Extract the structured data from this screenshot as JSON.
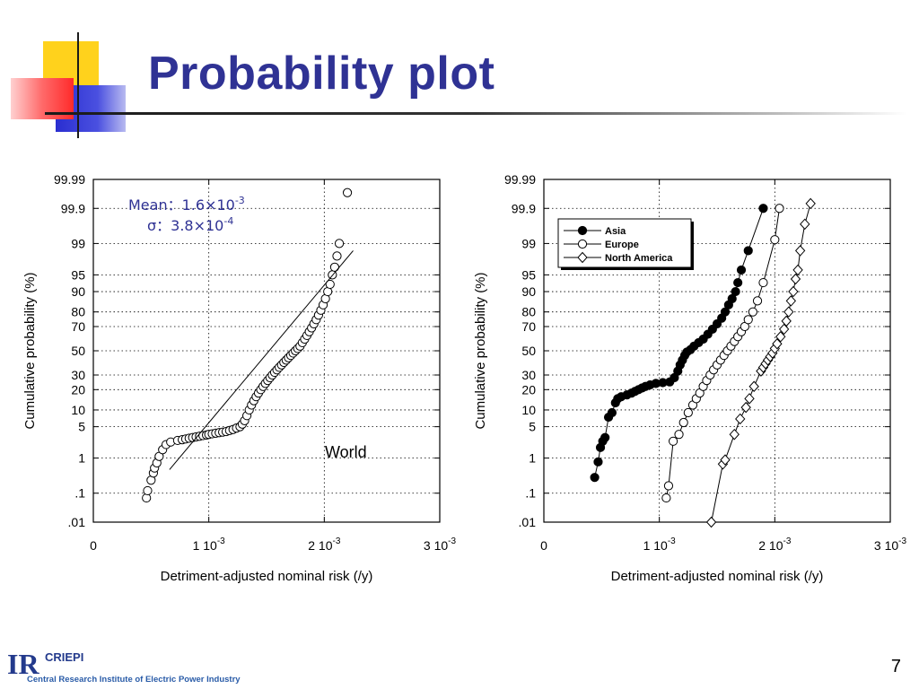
{
  "slide": {
    "title": "Probability plot",
    "page_number": "7",
    "logo": {
      "mark": "IR",
      "brand": "CRIEPI",
      "name": "Central Research Institute of Electric Power Industry"
    },
    "colors": {
      "title": "#2f3294",
      "yellow": "#ffd21c",
      "red": "#ff3a3a",
      "blue": "#2a2ed0",
      "annotation": "#2f3294"
    }
  },
  "chart_data": [
    {
      "type": "scatter",
      "title": "",
      "xlabel": "Detriment-adjusted nominal risk (/y)",
      "ylabel": "Cumulative probability (%)",
      "y_scale": "normal-probability",
      "xlim": [
        0,
        0.003
      ],
      "ylim": [
        0.01,
        99.99
      ],
      "x_ticks": [
        {
          "value": 0,
          "label": "0"
        },
        {
          "value": 0.001,
          "label": "1 10",
          "exp": "-3"
        },
        {
          "value": 0.002,
          "label": "2 10",
          "exp": "-3"
        },
        {
          "value": 0.003,
          "label": "3 10",
          "exp": "-3"
        }
      ],
      "y_ticks": [
        {
          "value": 0.01,
          "label": ".01"
        },
        {
          "value": 0.1,
          "label": ".1"
        },
        {
          "value": 1,
          "label": "1"
        },
        {
          "value": 5,
          "label": "5"
        },
        {
          "value": 10,
          "label": "10"
        },
        {
          "value": 20,
          "label": "20"
        },
        {
          "value": 30,
          "label": "30"
        },
        {
          "value": 50,
          "label": "50"
        },
        {
          "value": 70,
          "label": "70"
        },
        {
          "value": 80,
          "label": "80"
        },
        {
          "value": 90,
          "label": "90"
        },
        {
          "value": 95,
          "label": "95"
        },
        {
          "value": 99,
          "label": "99"
        },
        {
          "value": 99.9,
          "label": "99.9"
        },
        {
          "value": 99.99,
          "label": "99.99"
        }
      ],
      "grid": true,
      "annotations": [
        {
          "text": "World"
        },
        {
          "text": "Mean：1.6×10",
          "exp": "-3"
        },
        {
          "text": "σ：3.8×10",
          "exp": "-4"
        }
      ],
      "series": [
        {
          "marker": "open-circle",
          "color": "#000000",
          "connected": false,
          "x": [
            0.00046,
            0.00047,
            0.0005,
            0.00052,
            0.00053,
            0.00055,
            0.00057,
            0.0006,
            0.00063,
            0.00067,
            0.00073,
            0.00077,
            0.0008,
            0.00083,
            0.00086,
            0.00089,
            0.00092,
            0.00095,
            0.00098,
            0.001,
            0.00103,
            0.00106,
            0.00109,
            0.00112,
            0.00115,
            0.00118,
            0.00121,
            0.00124,
            0.00127,
            0.00129,
            0.00131,
            0.00133,
            0.00135,
            0.00137,
            0.00139,
            0.00141,
            0.00143,
            0.00145,
            0.00147,
            0.00149,
            0.00151,
            0.00153,
            0.00155,
            0.00157,
            0.00159,
            0.00161,
            0.00163,
            0.00165,
            0.00167,
            0.00169,
            0.00171,
            0.00173,
            0.00175,
            0.00177,
            0.00179,
            0.00181,
            0.00183,
            0.00185,
            0.00187,
            0.00189,
            0.00191,
            0.00193,
            0.00195,
            0.00197,
            0.00199,
            0.00201,
            0.00203,
            0.00205,
            0.00207,
            0.00209,
            0.00211,
            0.00213,
            0.0022
          ],
          "y": [
            0.07,
            0.12,
            0.25,
            0.4,
            0.55,
            0.75,
            1.1,
            1.6,
            2.1,
            2.4,
            2.6,
            2.7,
            2.8,
            2.9,
            3.0,
            3.1,
            3.2,
            3.3,
            3.4,
            3.5,
            3.6,
            3.7,
            3.8,
            3.9,
            4.0,
            4.2,
            4.4,
            4.7,
            5.0,
            5.6,
            6.5,
            8,
            10,
            12,
            14,
            16,
            18,
            20,
            22,
            24,
            26,
            28,
            30,
            32,
            34,
            36,
            38,
            40,
            42,
            44,
            46,
            48,
            50,
            52,
            54,
            57,
            60,
            63,
            66,
            69,
            72,
            75,
            78,
            81,
            84,
            87,
            90,
            92.5,
            95,
            96.5,
            98,
            99,
            99.97
          ]
        },
        {
          "marker": "line",
          "color": "#000000",
          "connected": true,
          "name": "",
          "x": [
            0.00066,
            0.00225
          ],
          "y": [
            0.5,
            98.5
          ]
        }
      ]
    },
    {
      "type": "scatter",
      "title": "",
      "xlabel": "Detriment-adjusted nominal risk (/y)",
      "ylabel": "Cumulative probability (%)",
      "y_scale": "normal-probability",
      "xlim": [
        0,
        0.003
      ],
      "ylim": [
        0.01,
        99.99
      ],
      "x_ticks": [
        {
          "value": 0,
          "label": "0"
        },
        {
          "value": 0.001,
          "label": "1 10",
          "exp": "-3"
        },
        {
          "value": 0.002,
          "label": "2 10",
          "exp": "-3"
        },
        {
          "value": 0.003,
          "label": "3 10",
          "exp": "-3"
        }
      ],
      "y_ticks": [
        {
          "value": 0.01,
          "label": ".01"
        },
        {
          "value": 0.1,
          "label": ".1"
        },
        {
          "value": 1,
          "label": "1"
        },
        {
          "value": 5,
          "label": "5"
        },
        {
          "value": 10,
          "label": "10"
        },
        {
          "value": 20,
          "label": "20"
        },
        {
          "value": 30,
          "label": "30"
        },
        {
          "value": 50,
          "label": "50"
        },
        {
          "value": 70,
          "label": "70"
        },
        {
          "value": 80,
          "label": "80"
        },
        {
          "value": 90,
          "label": "90"
        },
        {
          "value": 95,
          "label": "95"
        },
        {
          "value": 99,
          "label": "99"
        },
        {
          "value": 99.9,
          "label": "99.9"
        },
        {
          "value": 99.99,
          "label": "99.99"
        }
      ],
      "grid": true,
      "legend": {
        "position": "top-left"
      },
      "series": [
        {
          "name": "Asia",
          "marker": "filled-circle",
          "color": "#000000",
          "connected": true,
          "x": [
            0.00044,
            0.00047,
            0.00049,
            0.00051,
            0.00053,
            0.00056,
            0.00059,
            0.00062,
            0.00064,
            0.00067,
            0.00072,
            0.00076,
            0.00079,
            0.00082,
            0.00085,
            0.00088,
            0.00092,
            0.00097,
            0.00103,
            0.00109,
            0.00113,
            0.00116,
            0.00118,
            0.0012,
            0.00122,
            0.00124,
            0.00127,
            0.0013,
            0.00134,
            0.00138,
            0.00142,
            0.00146,
            0.0015,
            0.00154,
            0.00157,
            0.0016,
            0.00163,
            0.00166,
            0.00168,
            0.00171,
            0.00177,
            0.0019
          ],
          "y": [
            0.3,
            0.8,
            1.8,
            2.5,
            3.0,
            7.5,
            9,
            13,
            15,
            16,
            17,
            18,
            19,
            20,
            21,
            22,
            23,
            24,
            24.5,
            25,
            28,
            33,
            38,
            42,
            46,
            49,
            51,
            54,
            57,
            60,
            64,
            68,
            72,
            76,
            80,
            84,
            87,
            90,
            93,
            96,
            98.5,
            99.9
          ]
        },
        {
          "name": "Europe",
          "marker": "open-circle",
          "color": "#000000",
          "connected": true,
          "x": [
            0.00106,
            0.00108,
            0.00112,
            0.00117,
            0.00121,
            0.00125,
            0.00129,
            0.00132,
            0.00135,
            0.00138,
            0.00141,
            0.00144,
            0.00147,
            0.0015,
            0.00153,
            0.00156,
            0.00159,
            0.00162,
            0.00165,
            0.00168,
            0.00171,
            0.00174,
            0.00177,
            0.00181,
            0.00185,
            0.0019,
            0.002,
            0.00204
          ],
          "y": [
            0.07,
            0.17,
            2.5,
            3.5,
            6,
            9,
            12,
            15,
            18,
            22,
            26,
            30,
            34,
            38,
            42,
            46,
            50,
            54,
            58,
            62,
            66,
            70,
            75,
            80,
            86,
            93,
            99.2,
            99.9
          ]
        },
        {
          "name": "North America",
          "marker": "open-diamond",
          "color": "#000000",
          "connected": true,
          "x": [
            0.00145,
            0.00155,
            0.00157,
            0.00165,
            0.0017,
            0.00175,
            0.00178,
            0.00182,
            0.00188,
            0.0019,
            0.00192,
            0.00194,
            0.00196,
            0.00198,
            0.002,
            0.00202,
            0.00205,
            0.00208,
            0.0021,
            0.00212,
            0.00214,
            0.00216,
            0.00218,
            0.0022,
            0.00222,
            0.00226,
            0.00231
          ],
          "y": [
            0.01,
            0.7,
            0.9,
            3.5,
            7,
            11,
            15,
            22,
            33,
            36,
            39,
            42,
            45,
            48,
            52,
            56,
            62,
            68,
            74,
            80,
            86,
            90,
            94,
            96,
            98.5,
            99.7,
            99.93
          ]
        }
      ]
    }
  ]
}
